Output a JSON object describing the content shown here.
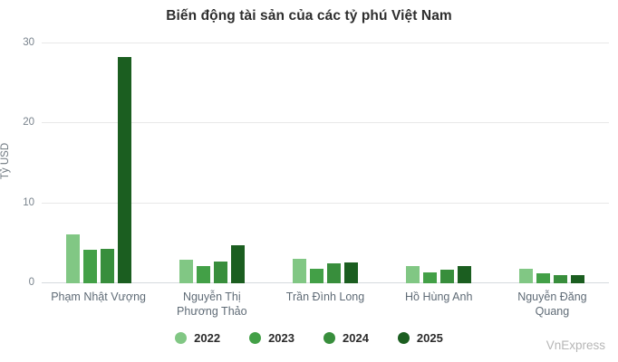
{
  "title": "Biến động tài sản của các tỷ phú Việt Nam",
  "watermark": "VnExpress",
  "chart_data": {
    "type": "bar",
    "title": "Biến động tài sản của các tỷ phú Việt Nam",
    "ylabel": "Tỷ USD",
    "xlabel": "",
    "ylim": [
      0,
      30
    ],
    "yticks": [
      0,
      10,
      20,
      30
    ],
    "grid": "horizontal-only",
    "legend_position": "bottom-center",
    "bar_color_palette_note": "green shades, light (oldest year) to dark (newest year)",
    "categories": [
      "Phạm Nhật Vượng",
      "Nguyễn Thị Phương Thảo",
      "Trần Đình Long",
      "Hồ Hùng Anh",
      "Nguyễn Đăng Quang"
    ],
    "series": [
      {
        "name": "2022",
        "color": "#81c784",
        "values": [
          6.1,
          3.0,
          3.1,
          2.2,
          1.8
        ]
      },
      {
        "name": "2023",
        "color": "#43a047",
        "values": [
          4.2,
          2.1,
          1.8,
          1.4,
          1.2
        ]
      },
      {
        "name": "2024",
        "color": "#388e3c",
        "values": [
          4.3,
          2.7,
          2.5,
          1.7,
          1.0
        ]
      },
      {
        "name": "2025",
        "color": "#1b5e20",
        "values": [
          28.3,
          4.7,
          2.6,
          2.2,
          1.0
        ]
      }
    ]
  }
}
